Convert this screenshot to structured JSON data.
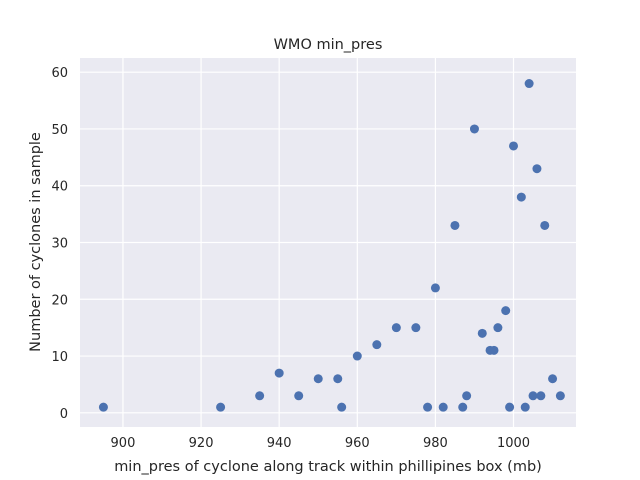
{
  "chart_data": {
    "type": "scatter",
    "title": "WMO min_pres",
    "xlabel": "min_pres of cyclone along track within phillipines box (mb)",
    "ylabel": "Number of cyclones in sample",
    "xlim": [
      889,
      1016
    ],
    "ylim": [
      -2.5,
      62.5
    ],
    "xticks": [
      900,
      920,
      940,
      960,
      980,
      1000
    ],
    "yticks": [
      0,
      10,
      20,
      30,
      40,
      50,
      60
    ],
    "grid": true,
    "background_color": "#eaeaf2",
    "point_color": "#4c72b0",
    "points": [
      {
        "x": 895,
        "y": 1
      },
      {
        "x": 925,
        "y": 1
      },
      {
        "x": 935,
        "y": 3
      },
      {
        "x": 940,
        "y": 7
      },
      {
        "x": 945,
        "y": 3
      },
      {
        "x": 950,
        "y": 6
      },
      {
        "x": 955,
        "y": 6
      },
      {
        "x": 956,
        "y": 1
      },
      {
        "x": 960,
        "y": 10
      },
      {
        "x": 965,
        "y": 12
      },
      {
        "x": 970,
        "y": 15
      },
      {
        "x": 975,
        "y": 15
      },
      {
        "x": 978,
        "y": 1
      },
      {
        "x": 980,
        "y": 22
      },
      {
        "x": 982,
        "y": 1
      },
      {
        "x": 985,
        "y": 33
      },
      {
        "x": 987,
        "y": 1
      },
      {
        "x": 988,
        "y": 3
      },
      {
        "x": 990,
        "y": 50
      },
      {
        "x": 992,
        "y": 14
      },
      {
        "x": 994,
        "y": 11
      },
      {
        "x": 995,
        "y": 11
      },
      {
        "x": 996,
        "y": 15
      },
      {
        "x": 998,
        "y": 18
      },
      {
        "x": 999,
        "y": 1
      },
      {
        "x": 1000,
        "y": 47
      },
      {
        "x": 1002,
        "y": 38
      },
      {
        "x": 1003,
        "y": 1
      },
      {
        "x": 1004,
        "y": 58
      },
      {
        "x": 1005,
        "y": 3
      },
      {
        "x": 1006,
        "y": 43
      },
      {
        "x": 1007,
        "y": 3
      },
      {
        "x": 1008,
        "y": 33
      },
      {
        "x": 1010,
        "y": 6
      },
      {
        "x": 1012,
        "y": 3
      }
    ]
  }
}
